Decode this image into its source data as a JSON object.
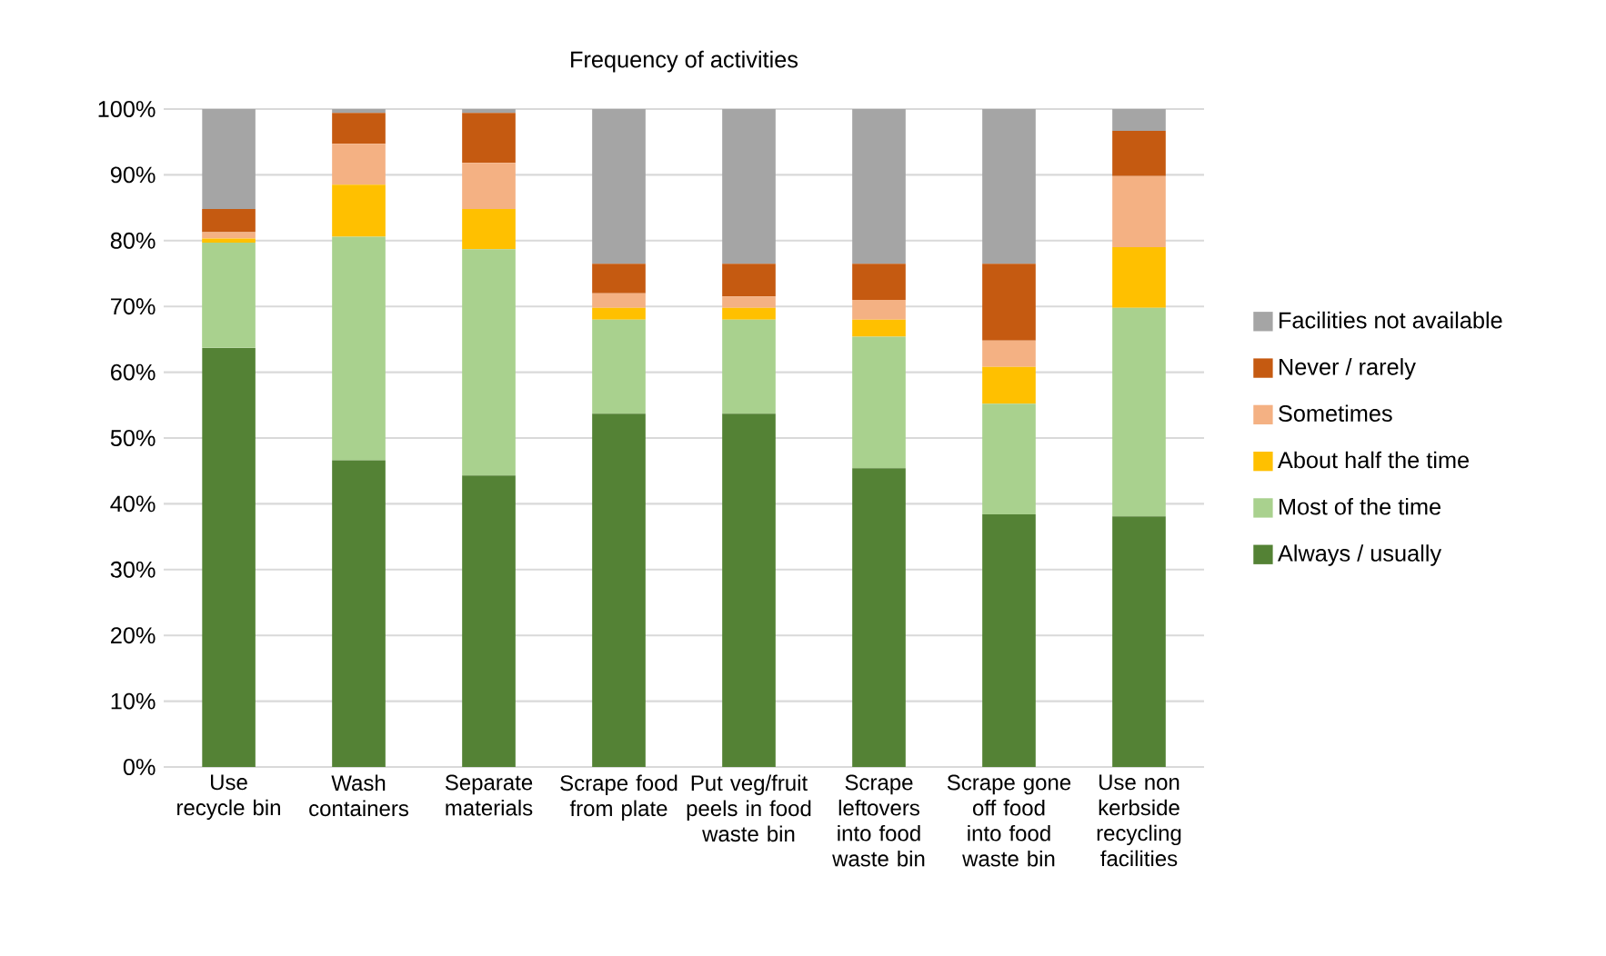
{
  "chart_data": {
    "type": "bar",
    "title": "Frequency of activities",
    "stacked": true,
    "categories": [
      "Use recycle bin",
      "Wash containers",
      "Separate materials",
      "Scrape food from plate",
      "Put veg/fruit peels in food waste bin",
      "Scrape leftovers into food waste bin",
      "Scrape gone off food into food waste bin",
      "Use non kerbside recycling facilities"
    ],
    "series": [
      {
        "name": "Always / usually",
        "color": "#548235",
        "values": [
          63.7,
          46.6,
          44.3,
          53.7,
          53.7,
          45.4,
          38.4,
          38.1
        ]
      },
      {
        "name": "Most of the time",
        "color": "#a9d18e",
        "values": [
          16,
          34,
          34.4,
          14.3,
          14.3,
          20,
          16.8,
          31.7
        ]
      },
      {
        "name": "About half the time",
        "color": "#ffc000",
        "values": [
          0.6,
          7.9,
          6.1,
          1.8,
          1.8,
          2.6,
          5.6,
          9.2
        ]
      },
      {
        "name": "Sometimes",
        "color": "#f4b183",
        "values": [
          1,
          6.2,
          7,
          2.2,
          1.7,
          3,
          4,
          10.8
        ]
      },
      {
        "name": "Never / rarely",
        "color": "#c55a11",
        "values": [
          3.5,
          4.7,
          7.6,
          4.5,
          5,
          5.5,
          11.7,
          6.9
        ]
      },
      {
        "name": "Facilities not available",
        "color": "#a5a5a5",
        "values": [
          15.2,
          0.6,
          0.6,
          23.5,
          23.5,
          23.5,
          23.5,
          3.3
        ]
      }
    ],
    "ylim": [
      0,
      100
    ],
    "yticks": [
      {
        "value": 0,
        "label": "0%"
      },
      {
        "value": 10,
        "label": "10%"
      },
      {
        "value": 20,
        "label": "20%"
      },
      {
        "value": 30,
        "label": "30%"
      },
      {
        "value": 40,
        "label": "40%"
      },
      {
        "value": 50,
        "label": "50%"
      },
      {
        "value": 60,
        "label": "60%"
      },
      {
        "value": 70,
        "label": "70%"
      },
      {
        "value": 80,
        "label": "80%"
      },
      {
        "value": 90,
        "label": "90%"
      },
      {
        "value": 100,
        "label": "100%"
      }
    ],
    "grid": "y",
    "legend": "right"
  }
}
